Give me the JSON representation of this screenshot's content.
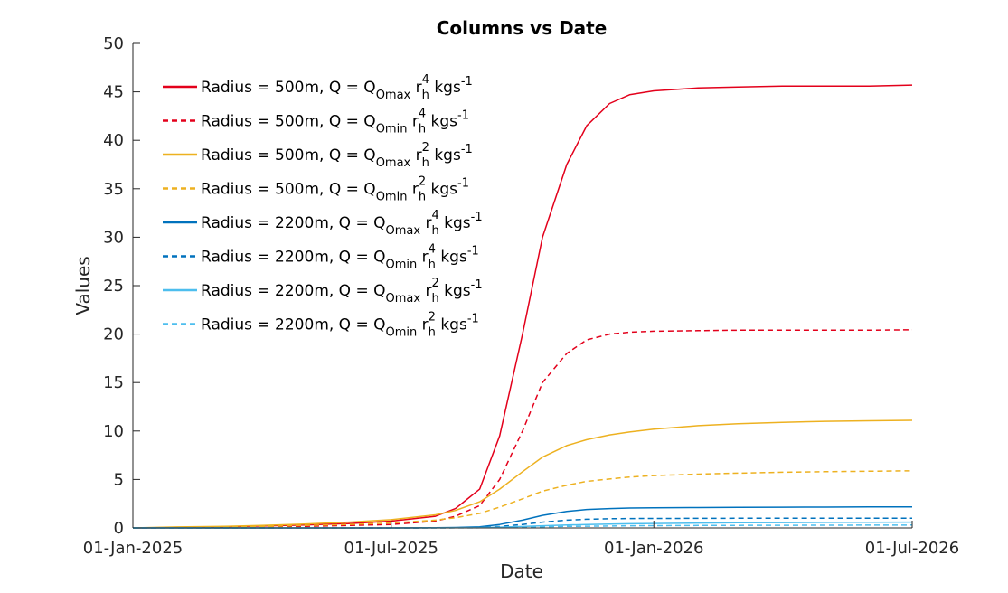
{
  "chart_data": {
    "type": "line",
    "title": "Columns vs Date",
    "xlabel": "Date",
    "ylabel": "Values",
    "x_axis": "date",
    "xlim": [
      "2025-01-01",
      "2026-07-01"
    ],
    "ylim": [
      0,
      50
    ],
    "xticks": [
      "01-Jan-2025",
      "01-Jul-2025",
      "01-Jan-2026",
      "01-Jul-2026"
    ],
    "xtick_dates": [
      "2025-01-01",
      "2025-07-01",
      "2026-01-01",
      "2026-07-01"
    ],
    "yticks": [
      0,
      5,
      10,
      15,
      20,
      25,
      30,
      35,
      40,
      45,
      50
    ],
    "grid": false,
    "legend_location": "top-left",
    "x": [
      "2025-01-01",
      "2025-02-01",
      "2025-03-01",
      "2025-04-01",
      "2025-05-01",
      "2025-06-01",
      "2025-07-01",
      "2025-08-01",
      "2025-08-15",
      "2025-09-01",
      "2025-09-15",
      "2025-10-01",
      "2025-10-15",
      "2025-11-01",
      "2025-11-15",
      "2025-12-01",
      "2025-12-15",
      "2026-01-01",
      "2026-02-01",
      "2026-03-01",
      "2026-04-01",
      "2026-05-01",
      "2026-06-01",
      "2026-07-01"
    ],
    "series": [
      {
        "name_parts": {
          "prefix": "Radius = 500m, Q = Q",
          "sub1": "Omax",
          "mid": " r",
          "sup": "4",
          "sub2": "h",
          "suffix": " kgs",
          "unit_sup": "-1"
        },
        "color": "#e3001b",
        "dash": "solid",
        "values": [
          0.0,
          0.05,
          0.1,
          0.2,
          0.3,
          0.45,
          0.7,
          1.2,
          2.0,
          4.0,
          9.5,
          20.0,
          30.0,
          37.5,
          41.5,
          43.8,
          44.7,
          45.1,
          45.4,
          45.5,
          45.6,
          45.6,
          45.6,
          45.7
        ]
      },
      {
        "name_parts": {
          "prefix": "Radius = 500m, Q = Q",
          "sub1": "Omin",
          "mid": " r",
          "sup": "4",
          "sub2": "h",
          "suffix": " kgs",
          "unit_sup": "-1"
        },
        "color": "#e3001b",
        "dash": "dashed",
        "values": [
          0.0,
          0.03,
          0.06,
          0.1,
          0.17,
          0.25,
          0.35,
          0.7,
          1.2,
          2.3,
          5.0,
          10.0,
          15.0,
          18.0,
          19.4,
          20.0,
          20.2,
          20.3,
          20.35,
          20.4,
          20.4,
          20.4,
          20.4,
          20.45
        ]
      },
      {
        "name_parts": {
          "prefix": "Radius = 500m, Q = Q",
          "sub1": "Omax",
          "mid": " r",
          "sup": "2",
          "sub2": "h",
          "suffix": " kgs",
          "unit_sup": "-1"
        },
        "color": "#edb120",
        "dash": "solid",
        "values": [
          0.0,
          0.1,
          0.15,
          0.25,
          0.4,
          0.6,
          0.85,
          1.35,
          1.8,
          2.7,
          4.0,
          5.8,
          7.3,
          8.5,
          9.1,
          9.6,
          9.9,
          10.2,
          10.55,
          10.75,
          10.9,
          11.0,
          11.05,
          11.1
        ]
      },
      {
        "name_parts": {
          "prefix": "Radius = 500m, Q = Q",
          "sub1": "Omin",
          "mid": " r",
          "sup": "2",
          "sub2": "h",
          "suffix": " kgs",
          "unit_sup": "-1"
        },
        "color": "#edb120",
        "dash": "dashed",
        "values": [
          0.0,
          0.05,
          0.1,
          0.15,
          0.25,
          0.35,
          0.5,
          0.8,
          1.05,
          1.5,
          2.15,
          3.0,
          3.8,
          4.4,
          4.8,
          5.05,
          5.25,
          5.4,
          5.55,
          5.65,
          5.75,
          5.8,
          5.85,
          5.9
        ]
      },
      {
        "name_parts": {
          "prefix": "Radius = 2200m, Q = Q",
          "sub1": "Omax",
          "mid": " r",
          "sup": "4",
          "sub2": "h",
          "suffix": " kgs",
          "unit_sup": "-1"
        },
        "color": "#0072bd",
        "dash": "solid",
        "values": [
          0.0,
          0.0,
          0.0,
          0.0,
          0.0,
          0.0,
          0.0,
          0.02,
          0.05,
          0.12,
          0.35,
          0.8,
          1.3,
          1.7,
          1.9,
          2.0,
          2.05,
          2.08,
          2.1,
          2.12,
          2.14,
          2.15,
          2.16,
          2.17
        ]
      },
      {
        "name_parts": {
          "prefix": "Radius = 2200m, Q = Q",
          "sub1": "Omin",
          "mid": " r",
          "sup": "4",
          "sub2": "h",
          "suffix": " kgs",
          "unit_sup": "-1"
        },
        "color": "#0072bd",
        "dash": "dashed",
        "values": [
          0.0,
          0.0,
          0.0,
          0.0,
          0.0,
          0.0,
          0.0,
          0.01,
          0.02,
          0.05,
          0.15,
          0.35,
          0.6,
          0.8,
          0.9,
          0.95,
          0.97,
          0.98,
          0.99,
          1.0,
          1.0,
          1.0,
          1.0,
          1.0
        ]
      },
      {
        "name_parts": {
          "prefix": "Radius = 2200m, Q = Q",
          "sub1": "Omax",
          "mid": " r",
          "sup": "2",
          "sub2": "h",
          "suffix": " kgs",
          "unit_sup": "-1"
        },
        "color": "#4dbeee",
        "dash": "solid",
        "values": [
          0.0,
          0.0,
          0.0,
          0.0,
          0.0,
          0.0,
          0.0,
          0.01,
          0.02,
          0.04,
          0.08,
          0.15,
          0.22,
          0.3,
          0.35,
          0.4,
          0.43,
          0.46,
          0.5,
          0.53,
          0.55,
          0.57,
          0.58,
          0.6
        ]
      },
      {
        "name_parts": {
          "prefix": "Radius = 2200m, Q = Q",
          "sub1": "Omin",
          "mid": " r",
          "sup": "2",
          "sub2": "h",
          "suffix": " kgs",
          "unit_sup": "-1"
        },
        "color": "#4dbeee",
        "dash": "dashed",
        "values": [
          0.0,
          0.0,
          0.0,
          0.0,
          0.0,
          0.0,
          0.0,
          0.005,
          0.01,
          0.02,
          0.04,
          0.08,
          0.12,
          0.16,
          0.18,
          0.2,
          0.22,
          0.23,
          0.25,
          0.26,
          0.27,
          0.28,
          0.29,
          0.3
        ]
      }
    ]
  }
}
